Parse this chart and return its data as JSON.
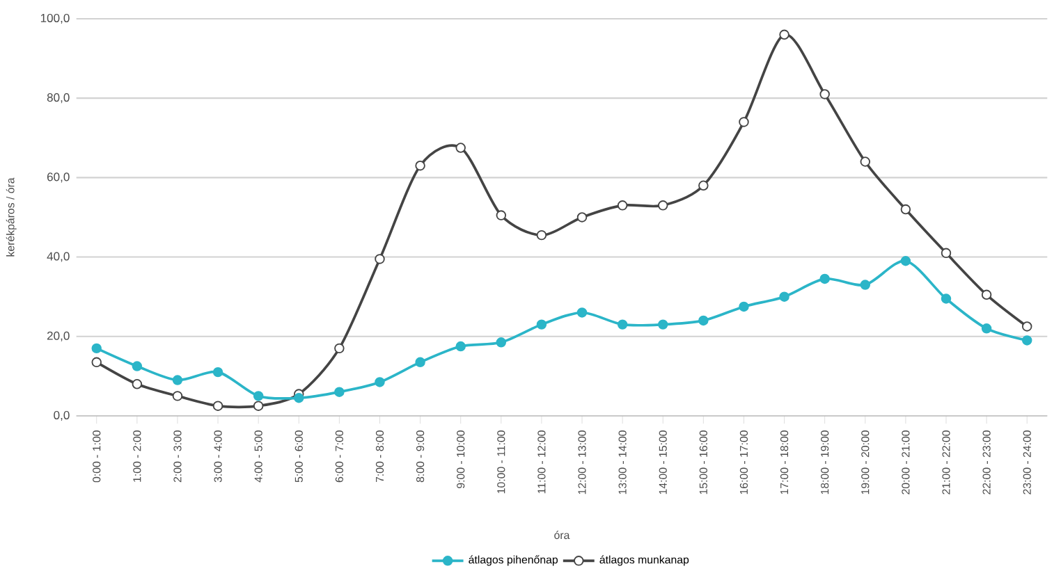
{
  "chart_data": {
    "type": "line",
    "xlabel": "óra",
    "ylabel": "kerékpáros / óra",
    "categories": [
      "0:00 - 1:00",
      "1:00 - 2:00",
      "2:00 - 3:00",
      "3:00 - 4:00",
      "4:00 - 5:00",
      "5:00 - 6:00",
      "6:00 - 7:00",
      "7:00 - 8:00",
      "8:00 - 9:00",
      "9:00 - 10:00",
      "10:00 - 11:00",
      "11:00 - 12:00",
      "12:00 - 13:00",
      "13:00 - 14:00",
      "14:00 - 15:00",
      "15:00 - 16:00",
      "16:00 - 17:00",
      "17:00 - 18:00",
      "18:00 - 19:00",
      "19:00 - 20:00",
      "20:00 - 21:00",
      "21:00 - 22:00",
      "22:00 - 23:00",
      "23:00 - 24:00"
    ],
    "series": [
      {
        "name": "átlagos pihenőnap",
        "color": "#2bb5c8",
        "values": [
          17,
          12.5,
          9,
          11,
          5,
          4.5,
          6,
          8.5,
          13.5,
          17.5,
          18.5,
          23,
          26,
          23,
          23,
          24,
          27.5,
          30,
          34.5,
          33,
          39,
          29.5,
          22,
          19
        ]
      },
      {
        "name": "átlagos munkanap",
        "color": "#444444",
        "values": [
          13.5,
          8,
          5,
          2.5,
          2.5,
          5.5,
          17,
          39.5,
          63,
          67.5,
          50.5,
          45.5,
          50,
          53,
          53,
          58,
          74,
          96,
          81,
          64,
          52,
          41,
          30.5,
          22.5
        ]
      }
    ],
    "ylim": [
      0,
      100
    ],
    "yticks": [
      {
        "value": 0,
        "label": "0,0"
      },
      {
        "value": 20,
        "label": "20,0"
      },
      {
        "value": 40,
        "label": "40,0"
      },
      {
        "value": 60,
        "label": "60,0"
      },
      {
        "value": 80,
        "label": "80,0"
      },
      {
        "value": 100,
        "label": "100,0"
      }
    ],
    "grid": "y",
    "legend": "bottom",
    "marker": "circle",
    "line_style": "solid"
  }
}
